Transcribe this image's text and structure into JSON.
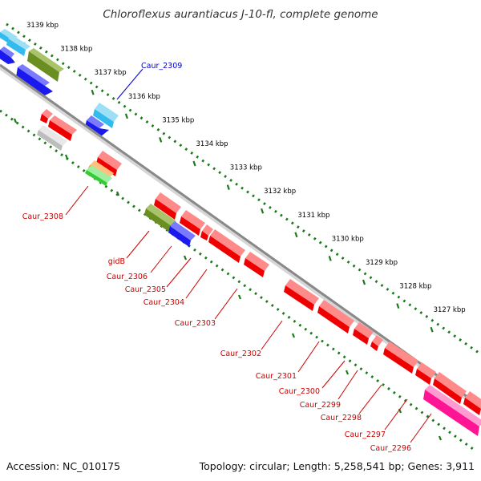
{
  "title": "Chloroflexus aurantiacus J-10-fl, complete genome",
  "footer": {
    "accession": "Accession: NC_010175",
    "info": "Topology: circular; Length: 5,258,541 bp; Genes: 3,911"
  },
  "ticks": [
    {
      "label": "3139 kbp",
      "kbp": 3139
    },
    {
      "label": "3138 kbp",
      "kbp": 3138
    },
    {
      "label": "3137 kbp",
      "kbp": 3137
    },
    {
      "label": "3136 kbp",
      "kbp": 3136
    },
    {
      "label": "3135 kbp",
      "kbp": 3135
    },
    {
      "label": "3134 kbp",
      "kbp": 3134
    },
    {
      "label": "3133 kbp",
      "kbp": 3133
    },
    {
      "label": "3132 kbp",
      "kbp": 3132
    },
    {
      "label": "3131 kbp",
      "kbp": 3131
    },
    {
      "label": "3130 kbp",
      "kbp": 3130
    },
    {
      "label": "3129 kbp",
      "kbp": 3129
    },
    {
      "label": "3128 kbp",
      "kbp": 3128
    },
    {
      "label": "3127 kbp",
      "kbp": 3127
    }
  ],
  "colors": {
    "cds": "#ee0000",
    "gene_blue": "#1a1aee",
    "gene_cyan": "#33bbee",
    "gene_olive": "#6b8e23",
    "gene_gray": "#c8c8c8",
    "gene_orange": "#ff8800",
    "gene_green": "#33cc33",
    "gene_magenta": "#ff1493",
    "backbone": "#888888",
    "ruler": "#1a7a1a",
    "label_red": "#cc0000",
    "label_blue": "#0000cc"
  },
  "labels": [
    {
      "text": "Caur_2309",
      "color": "blue"
    },
    {
      "text": "Caur_2308",
      "color": "red"
    },
    {
      "text": "gidB",
      "color": "red"
    },
    {
      "text": "Caur_2306",
      "color": "red"
    },
    {
      "text": "Caur_2305",
      "color": "red"
    },
    {
      "text": "Caur_2304",
      "color": "red"
    },
    {
      "text": "Caur_2303",
      "color": "red"
    },
    {
      "text": "Caur_2302",
      "color": "red"
    },
    {
      "text": "Caur_2301",
      "color": "red"
    },
    {
      "text": "Caur_2300",
      "color": "red"
    },
    {
      "text": "Caur_2299",
      "color": "red"
    },
    {
      "text": "Caur_2298",
      "color": "red"
    },
    {
      "text": "Caur_2297",
      "color": "red"
    },
    {
      "text": "Caur_2296",
      "color": "red"
    }
  ]
}
